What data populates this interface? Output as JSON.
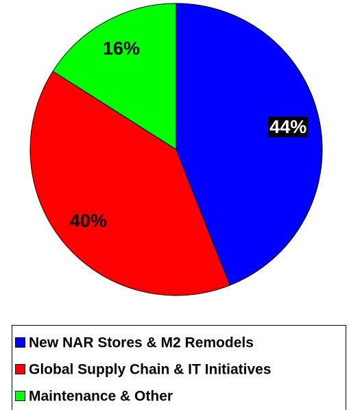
{
  "chart_data": {
    "type": "pie",
    "categories": [
      "New NAR Stores & M2 Remodels",
      "Global Supply Chain & IT Initiatives",
      "Maintenance & Other"
    ],
    "values": [
      44,
      40,
      16
    ],
    "value_labels": [
      "44%",
      "40%",
      "16%"
    ],
    "colors": [
      "#0000ff",
      "#ff0000",
      "#00ff00"
    ],
    "label_colors": [
      "#ffffff",
      "#000000",
      "#000000"
    ],
    "label_backgrounds": [
      "#000000",
      null,
      null
    ],
    "legend": "bottom"
  }
}
